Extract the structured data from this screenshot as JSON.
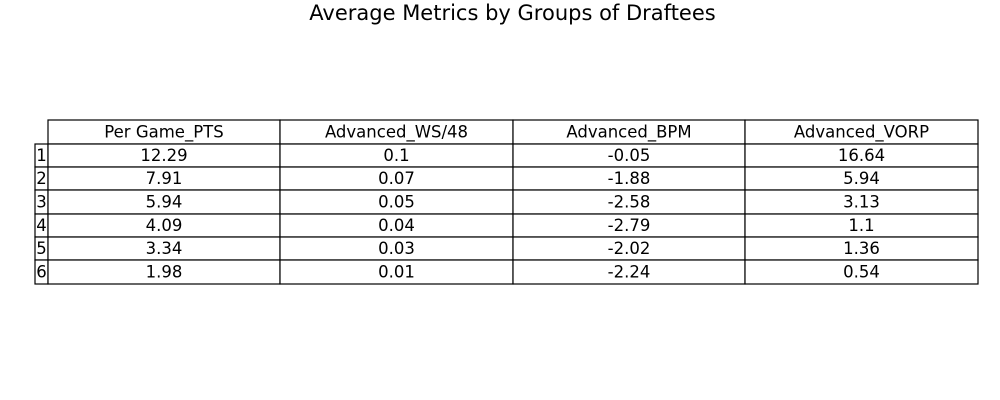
{
  "chart_data": {
    "type": "table",
    "title": "Average Metrics by Groups of Draftees",
    "columns": [
      "Per Game_PTS",
      "Advanced_WS/48",
      "Advanced_BPM",
      "Advanced_VORP"
    ],
    "row_labels": [
      "1",
      "2",
      "3",
      "4",
      "5",
      "6"
    ],
    "rows": [
      [
        "12.29",
        "0.1",
        "-0.05",
        "16.64"
      ],
      [
        "7.91",
        "0.07",
        "-1.88",
        "5.94"
      ],
      [
        "5.94",
        "0.05",
        "-2.58",
        "3.13"
      ],
      [
        "4.09",
        "0.04",
        "-2.79",
        "1.1"
      ],
      [
        "3.34",
        "0.03",
        "-2.02",
        "1.36"
      ],
      [
        "1.98",
        "0.01",
        "-2.24",
        "0.54"
      ]
    ]
  }
}
